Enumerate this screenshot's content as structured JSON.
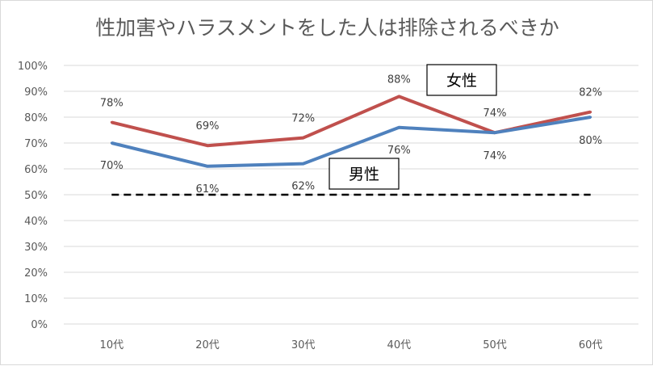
{
  "chart_data": {
    "type": "line",
    "title": "性加害やハラスメントをした人は排除されるべきか",
    "categories": [
      "10代",
      "20代",
      "30代",
      "40代",
      "50代",
      "60代"
    ],
    "series": [
      {
        "name": "女性",
        "values": [
          78,
          69,
          72,
          88,
          74,
          82
        ],
        "labels": [
          "78%",
          "69%",
          "72%",
          "88%",
          "74%",
          "82%"
        ],
        "color": "#c0504d"
      },
      {
        "name": "男性",
        "values": [
          70,
          61,
          62,
          76,
          74,
          80
        ],
        "labels": [
          "70%",
          "61%",
          "62%",
          "76%",
          "74%",
          "80%"
        ],
        "color": "#4f81bd"
      }
    ],
    "reference_line": {
      "value": 50,
      "style": "dashed",
      "color": "#000000"
    },
    "ylim": [
      0,
      100
    ],
    "yticks": [
      "0%",
      "10%",
      "20%",
      "30%",
      "40%",
      "50%",
      "60%",
      "70%",
      "80%",
      "90%",
      "100%"
    ],
    "xlabel": "",
    "ylabel": "",
    "grid": true,
    "legend": "inline labels"
  }
}
